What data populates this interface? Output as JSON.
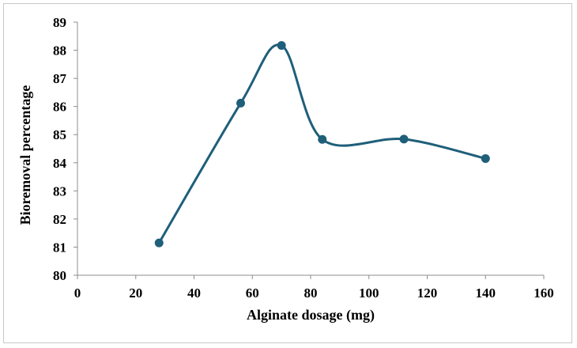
{
  "chart_data": {
    "type": "line",
    "title": "",
    "xlabel": "Alginate dosage (mg)",
    "ylabel": "Bioremoval percentage",
    "xlim": [
      0,
      160
    ],
    "ylim": [
      80,
      89
    ],
    "x_ticks": [
      0,
      20,
      40,
      60,
      80,
      100,
      120,
      140,
      160
    ],
    "y_ticks": [
      80,
      81,
      82,
      83,
      84,
      85,
      86,
      87,
      88,
      89
    ],
    "grid": false,
    "legend": "none",
    "smooth": true,
    "series": [
      {
        "color": "#1f5f7a",
        "x": [
          28,
          56,
          70,
          84,
          112,
          140
        ],
        "y": [
          81.15,
          86.12,
          88.17,
          84.83,
          84.84,
          84.15
        ]
      }
    ]
  }
}
